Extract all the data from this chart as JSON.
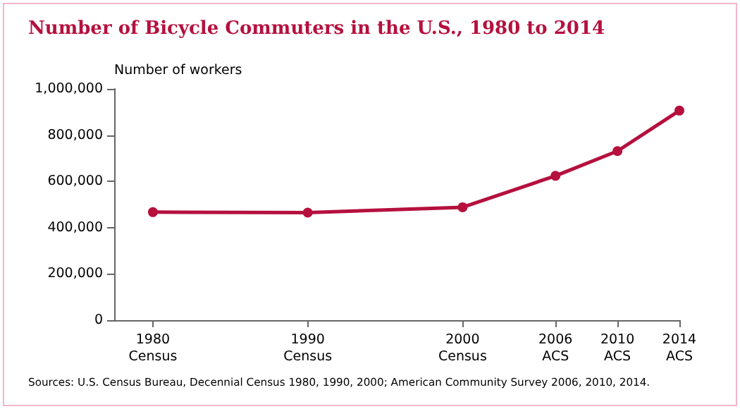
{
  "chart_data": {
    "type": "line",
    "title": "Number of Bicycle Commuters in the U.S., 1980 to 2014",
    "ylabel": "Number of workers",
    "x": [
      1980,
      1990,
      2000,
      2006,
      2010,
      2014
    ],
    "series": [
      {
        "color": "#b5103e",
        "values": [
          467000,
          465000,
          488000,
          624000,
          731000,
          906000
        ]
      }
    ],
    "xlim": [
      1977.5,
      2014
    ],
    "xticks": [
      {
        "value": 1980,
        "label": "1980\nCensus"
      },
      {
        "value": 1990,
        "label": "1990\nCensus"
      },
      {
        "value": 2000,
        "label": "2000\nCensus"
      },
      {
        "value": 2006,
        "label": "2006\nACS"
      },
      {
        "value": 2010,
        "label": "2010\nACS"
      },
      {
        "value": 2014,
        "label": "2014\nACS"
      }
    ],
    "ylim": [
      0,
      1000000
    ],
    "yticks": [
      0,
      {
        "value": 200000,
        "label": "200,000"
      },
      {
        "value": 400000,
        "label": "400,000"
      },
      {
        "value": 600000,
        "label": "600,000"
      },
      {
        "value": 800000,
        "label": "800,000"
      },
      {
        "value": 1000000,
        "label": "1,000,000"
      }
    ],
    "grid": false,
    "marker": "circle",
    "line_style": "solid",
    "annotations": [
      "Sources: U.S. Census Bureau, Decennial Census 1980, 1990, 2000; American Community Survey 2006, 2010, 2014."
    ]
  }
}
